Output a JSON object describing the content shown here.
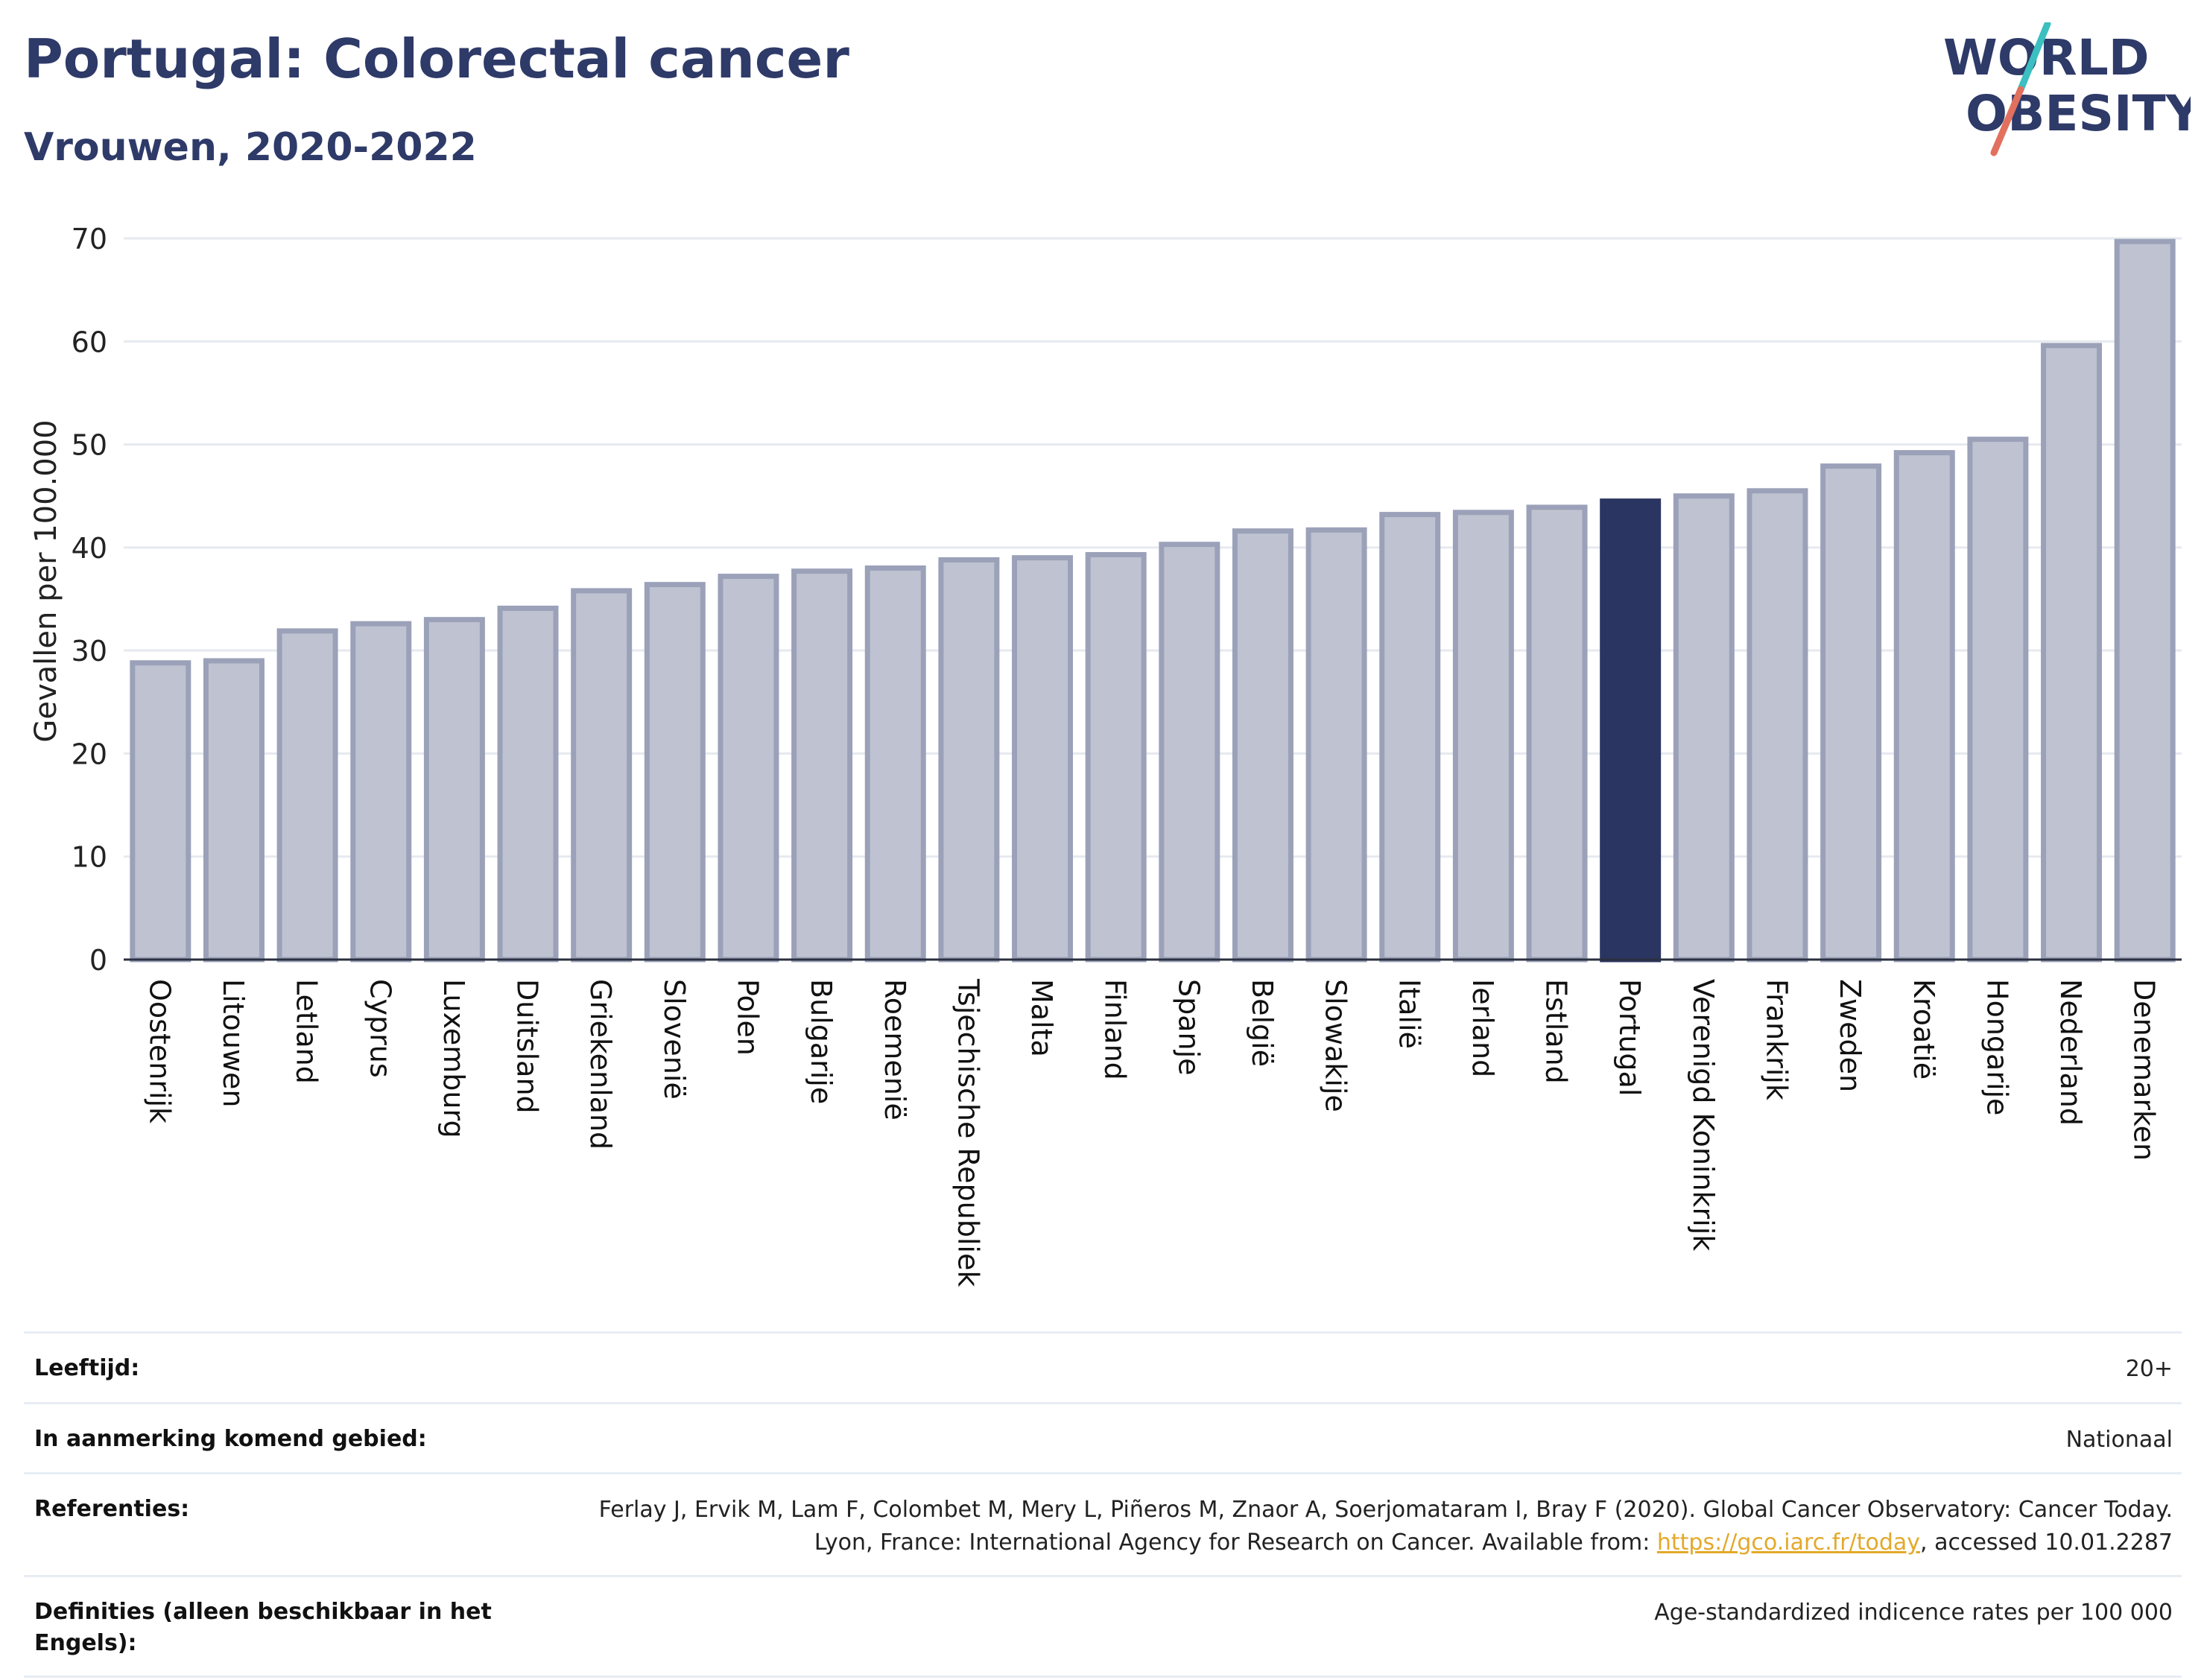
{
  "header": {
    "title": "Portugal: Colorectal cancer",
    "subtitle": "Vrouwen, 2020-2022",
    "logo_line1": "WORLD",
    "logo_line2": "OBESITY"
  },
  "colors": {
    "highlight": "#2b3561",
    "bar": "#bfc3d1",
    "bar_stroke": "#9ba1b8",
    "grid": "#e6e9ef",
    "title": "#2e3a68",
    "logo_slash_top": "#3bbfc1",
    "logo_slash_bottom": "#e2705e",
    "link": "#e3a92b"
  },
  "chart_data": {
    "type": "bar",
    "title": "Portugal: Colorectal cancer",
    "subtitle": "Vrouwen, 2020-2022",
    "xlabel": "",
    "ylabel": "Gevallen per 100.000",
    "ylim": [
      0,
      70
    ],
    "yticks": [
      0,
      10,
      20,
      30,
      40,
      50,
      60,
      70
    ],
    "grid": true,
    "highlight": "Portugal",
    "categories": [
      "Oostenrijk",
      "Litouwen",
      "Letland",
      "Cyprus",
      "Luxemburg",
      "Duitsland",
      "Griekenland",
      "Slovenië",
      "Polen",
      "Bulgarije",
      "Roemenië",
      "Tsjechische Republiek",
      "Malta",
      "Finland",
      "Spanje",
      "België",
      "Slowakije",
      "Italië",
      "Ierland",
      "Estland",
      "Portugal",
      "Verenigd Koninkrijk",
      "Frankrijk",
      "Zweden",
      "Kroatië",
      "Hongarije",
      "Nederland",
      "Denemarken"
    ],
    "values": [
      28.8,
      29.0,
      31.9,
      32.6,
      33.0,
      34.1,
      35.8,
      36.4,
      37.2,
      37.7,
      38.0,
      38.8,
      39.0,
      39.3,
      40.3,
      41.6,
      41.7,
      43.2,
      43.4,
      43.9,
      44.5,
      45.0,
      45.5,
      47.9,
      49.2,
      50.5,
      59.6,
      69.7
    ]
  },
  "meta": [
    {
      "label": "Leeftijd:",
      "value": "20+"
    },
    {
      "label": "In aanmerking komend gebied:",
      "value": "Nationaal"
    },
    {
      "label": "Referenties:",
      "value_before": "Ferlay J, Ervik M, Lam F, Colombet M, Mery L, Piñeros M, Znaor A, Soerjomataram I, Bray F (2020). Global Cancer Observatory: Cancer Today. Lyon, France: International Agency for Research on Cancer. Available from: ",
      "link": "https://gco.iarc.fr/today",
      "value_after": ", accessed 10.01.2287"
    },
    {
      "label": "Definities (alleen beschikbaar in het Engels):",
      "value": "Age-standardized indicence rates per 100 000"
    }
  ]
}
